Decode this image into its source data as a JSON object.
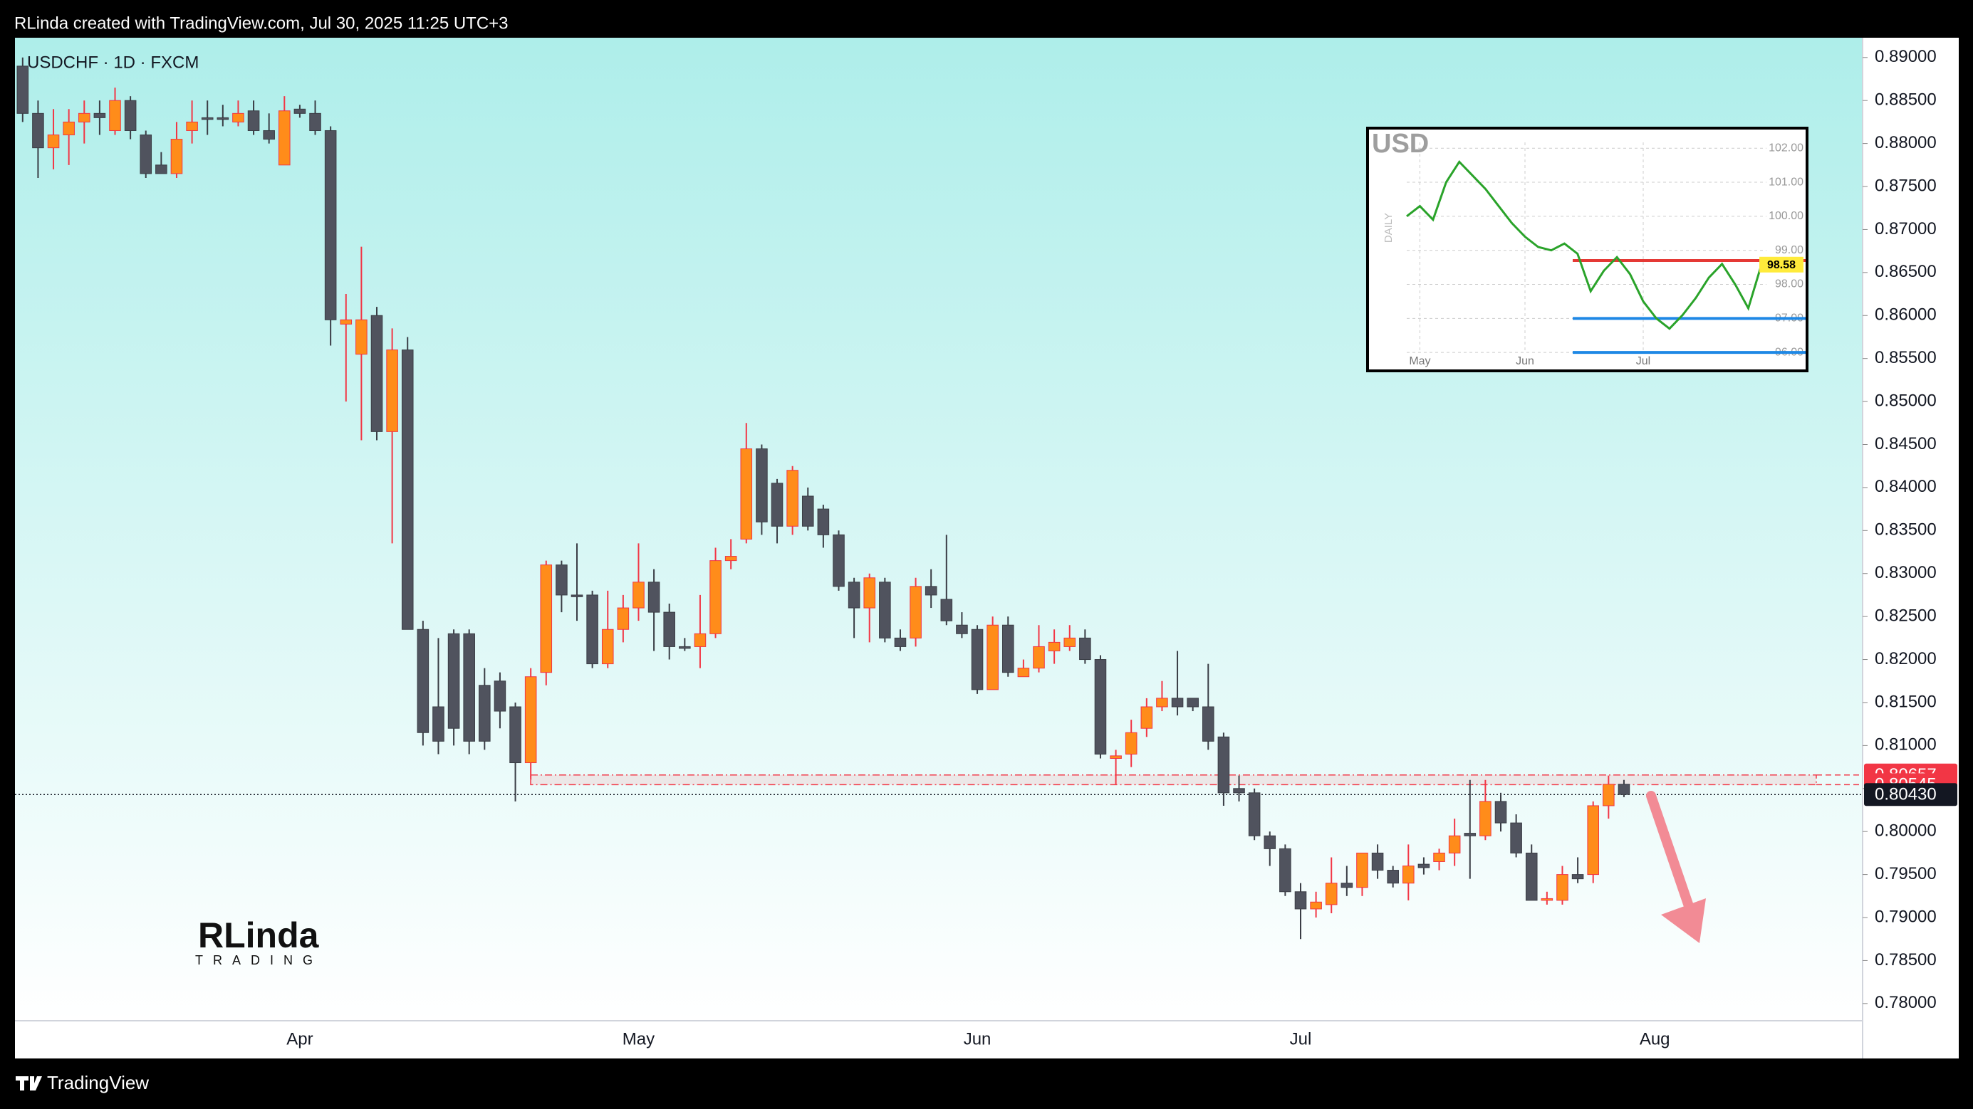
{
  "header": "RLinda created with TradingView.com, Jul 30, 2025 11:25 UTC+3",
  "footer": "TradingView",
  "logo": {
    "name": "RLinda",
    "tagline": "TRADING"
  },
  "chart_data": [
    {
      "type": "candlestick",
      "title": "USDCHF · 1D · FXCM",
      "up_color": "#ff8c1a",
      "down_color": "#50535e",
      "up_wick": "#f23645",
      "down_wick": "#3a3d45",
      "categories": [
        null,
        null,
        null,
        null,
        null,
        null,
        null,
        null,
        null,
        null,
        null,
        null,
        null,
        null,
        null,
        null,
        null,
        null,
        "Apr",
        null,
        null,
        null,
        null,
        null,
        null,
        null,
        null,
        null,
        null,
        null,
        null,
        null,
        null,
        null,
        null,
        null,
        null,
        null,
        null,
        null,
        "May",
        null,
        null,
        null,
        null,
        null,
        null,
        null,
        null,
        null,
        null,
        null,
        null,
        null,
        null,
        null,
        null,
        null,
        null,
        null,
        null,
        null,
        "Jun",
        null,
        null,
        null,
        null,
        null,
        null,
        null,
        null,
        null,
        null,
        null,
        null,
        null,
        null,
        null,
        null,
        null,
        null,
        null,
        null,
        "Jul",
        null,
        null,
        null,
        null,
        null,
        null,
        null,
        null,
        null,
        null,
        null,
        null,
        null,
        null,
        null,
        null,
        null,
        null,
        null,
        null,
        null,
        null,
        "Aug",
        null,
        null,
        null,
        null,
        null,
        null,
        null,
        null,
        null,
        null,
        null,
        null,
        null
      ],
      "open": [
        0.889,
        0.8835,
        0.8795,
        0.881,
        0.8825,
        0.8835,
        0.8815,
        0.885,
        0.881,
        0.8775,
        0.8765,
        0.8815,
        0.883,
        0.883,
        0.8825,
        0.8838,
        0.8815,
        0.8775,
        0.884,
        0.8835,
        0.8815,
        0.859,
        0.8555,
        0.86,
        0.8465,
        0.856,
        0.8235,
        0.8145,
        0.823,
        0.823,
        0.817,
        0.8175,
        0.8145,
        0.808,
        0.8185,
        0.831,
        0.8275,
        0.8275,
        0.8195,
        0.8235,
        0.826,
        0.829,
        0.8255,
        0.8215,
        0.8215,
        0.823,
        0.8315,
        0.834,
        0.8445,
        0.8405,
        0.8355,
        0.839,
        0.8375,
        0.8345,
        0.829,
        0.826,
        0.829,
        0.8225,
        0.8225,
        0.8285,
        0.827,
        0.824,
        0.8235,
        0.8165,
        0.824,
        0.818,
        0.819,
        0.821,
        0.8215,
        0.8225,
        0.82,
        0.8085,
        0.809,
        0.812,
        0.8145,
        0.8155,
        0.8155,
        0.8145,
        0.811,
        0.805,
        0.8045,
        0.7995,
        0.798,
        0.793,
        0.791,
        0.7915,
        0.794,
        0.7935,
        0.7975,
        0.7955,
        0.794,
        0.7962,
        0.7965,
        0.7975,
        0.7998,
        0.7995,
        0.8035,
        0.801,
        0.7975,
        0.792,
        0.792,
        0.795,
        0.795,
        0.803,
        0.8055,
        null,
        null,
        null,
        null,
        null,
        null,
        null,
        null,
        null,
        null,
        null,
        null,
        null,
        null,
        null
      ],
      "high": [
        0.89,
        0.885,
        0.884,
        0.884,
        0.885,
        0.885,
        0.8865,
        0.8855,
        0.8815,
        0.879,
        0.8825,
        0.885,
        0.885,
        0.8845,
        0.885,
        0.885,
        0.8835,
        0.8855,
        0.8845,
        0.885,
        0.882,
        0.8625,
        0.868,
        0.861,
        0.8585,
        0.8575,
        0.8245,
        0.8225,
        0.8235,
        0.8235,
        0.819,
        0.8185,
        0.815,
        0.819,
        0.8315,
        0.8315,
        0.8335,
        0.828,
        0.828,
        0.8275,
        0.8335,
        0.8305,
        0.8265,
        0.8225,
        0.8275,
        0.833,
        0.834,
        0.8475,
        0.845,
        0.841,
        0.8425,
        0.84,
        0.838,
        0.835,
        0.8295,
        0.83,
        0.8295,
        0.8235,
        0.8295,
        0.8305,
        0.8345,
        0.8255,
        0.824,
        0.825,
        0.825,
        0.82,
        0.824,
        0.8235,
        0.824,
        0.8235,
        0.8205,
        0.8095,
        0.813,
        0.8155,
        0.8175,
        0.821,
        0.8155,
        0.8195,
        0.8115,
        0.8065,
        0.805,
        0.8,
        0.7985,
        0.794,
        0.793,
        0.797,
        0.796,
        0.7975,
        0.7985,
        0.796,
        0.7985,
        0.797,
        0.798,
        0.8015,
        0.806,
        0.806,
        0.8045,
        0.802,
        0.7985,
        0.793,
        0.796,
        0.797,
        0.8035,
        0.8065,
        0.806,
        null,
        null,
        null,
        null,
        null,
        null,
        null,
        null,
        null,
        null,
        null,
        null,
        null,
        null,
        null
      ],
      "low": [
        0.8825,
        0.876,
        0.877,
        0.8775,
        0.88,
        0.881,
        0.881,
        0.8805,
        0.876,
        0.8765,
        0.876,
        0.88,
        0.881,
        0.882,
        0.882,
        0.881,
        0.88,
        0.8775,
        0.883,
        0.881,
        0.8565,
        0.85,
        0.8455,
        0.8455,
        0.8335,
        0.8235,
        0.81,
        0.809,
        0.81,
        0.809,
        0.8095,
        0.812,
        0.8035,
        0.806,
        0.817,
        0.8255,
        0.8245,
        0.819,
        0.819,
        0.822,
        0.8245,
        0.821,
        0.82,
        0.821,
        0.819,
        0.8225,
        0.8305,
        0.8335,
        0.8345,
        0.8335,
        0.8345,
        0.835,
        0.833,
        0.828,
        0.8225,
        0.822,
        0.822,
        0.821,
        0.8215,
        0.826,
        0.824,
        0.8225,
        0.816,
        0.8165,
        0.818,
        0.818,
        0.8185,
        0.8195,
        0.821,
        0.8195,
        0.8085,
        0.8055,
        0.8075,
        0.811,
        0.814,
        0.8135,
        0.814,
        0.8095,
        0.803,
        0.8035,
        0.799,
        0.796,
        0.7925,
        0.7875,
        0.79,
        0.7905,
        0.7925,
        0.7925,
        0.7945,
        0.7935,
        0.792,
        0.795,
        0.7955,
        0.796,
        0.7945,
        0.799,
        0.8,
        0.797,
        0.792,
        0.7915,
        0.7915,
        0.794,
        0.794,
        0.8015,
        0.804,
        null,
        null,
        null,
        null,
        null,
        null,
        null,
        null,
        null,
        null,
        null,
        null,
        null,
        null,
        null
      ],
      "close": [
        0.8835,
        0.8795,
        0.881,
        0.8825,
        0.8835,
        0.883,
        0.885,
        0.8815,
        0.8765,
        0.8765,
        0.8805,
        0.8825,
        0.8828,
        0.8828,
        0.8835,
        0.8815,
        0.8805,
        0.8838,
        0.8835,
        0.8815,
        0.8595,
        0.8595,
        0.8595,
        0.8465,
        0.856,
        0.8235,
        0.8115,
        0.8105,
        0.812,
        0.8105,
        0.8105,
        0.814,
        0.808,
        0.818,
        0.831,
        0.8275,
        0.8273,
        0.8195,
        0.8235,
        0.826,
        0.829,
        0.8255,
        0.8215,
        0.8213,
        0.823,
        0.8315,
        0.832,
        0.8445,
        0.836,
        0.8355,
        0.842,
        0.8355,
        0.8345,
        0.8285,
        0.826,
        0.8295,
        0.8225,
        0.8215,
        0.8285,
        0.8275,
        0.8245,
        0.823,
        0.8165,
        0.824,
        0.8185,
        0.819,
        0.8215,
        0.822,
        0.8225,
        0.82,
        0.809,
        0.8088,
        0.8115,
        0.8145,
        0.8155,
        0.8145,
        0.8145,
        0.8105,
        0.8045,
        0.8045,
        0.7995,
        0.798,
        0.793,
        0.791,
        0.7918,
        0.794,
        0.7935,
        0.7975,
        0.7955,
        0.794,
        0.796,
        0.7958,
        0.7975,
        0.7995,
        0.7995,
        0.8035,
        0.801,
        0.7975,
        0.792,
        0.7922,
        0.795,
        0.7945,
        0.803,
        0.8055,
        0.8043,
        null,
        null,
        null,
        null,
        null,
        null,
        null,
        null,
        null,
        null,
        null,
        null,
        null,
        null,
        null
      ],
      "ylim": [
        0.778,
        0.8923
      ],
      "yticks": [
        {
          "value": 0.78,
          "label": "0.78000"
        },
        {
          "value": 0.785,
          "label": "0.78500"
        },
        {
          "value": 0.79,
          "label": "0.79000"
        },
        {
          "value": 0.795,
          "label": "0.79500"
        },
        {
          "value": 0.8,
          "label": "0.80000"
        },
        {
          "value": 0.805,
          "label": "0.80500"
        },
        {
          "value": 0.81,
          "label": "0.81000"
        },
        {
          "value": 0.815,
          "label": "0.81500"
        },
        {
          "value": 0.82,
          "label": "0.82000"
        },
        {
          "value": 0.825,
          "label": "0.82500"
        },
        {
          "value": 0.83,
          "label": "0.83000"
        },
        {
          "value": 0.835,
          "label": "0.83500"
        },
        {
          "value": 0.84,
          "label": "0.84000"
        },
        {
          "value": 0.845,
          "label": "0.84500"
        },
        {
          "value": 0.85,
          "label": "0.85000"
        },
        {
          "value": 0.855,
          "label": "0.85500"
        },
        {
          "value": 0.86,
          "label": "0.86000"
        },
        {
          "value": 0.865,
          "label": "0.86500"
        },
        {
          "value": 0.87,
          "label": "0.87000"
        },
        {
          "value": 0.875,
          "label": "0.87500"
        },
        {
          "value": 0.88,
          "label": "0.88000"
        },
        {
          "value": 0.885,
          "label": "0.88500"
        },
        {
          "value": 0.89,
          "label": "0.89000"
        }
      ],
      "markers": [
        {
          "value": 0.80657,
          "color": "#f23645"
        },
        {
          "value": 0.80545,
          "color": "#f23645"
        },
        {
          "value": 0.8043,
          "label": "0.80430",
          "color": "#131722"
        }
      ]
    },
    {
      "type": "line",
      "title": "USD",
      "y_label": "DAILY",
      "color": "#2aa32a",
      "categories": [
        null,
        "May",
        null,
        null,
        null,
        null,
        null,
        null,
        null,
        "Jun",
        null,
        null,
        null,
        null,
        null,
        null,
        null,
        null,
        "Jul",
        null,
        null,
        null,
        null,
        null,
        null,
        null,
        null,
        null
      ],
      "values": [
        100.0,
        100.3,
        99.9,
        101.0,
        101.6,
        101.2,
        100.8,
        100.3,
        99.8,
        99.4,
        99.1,
        99.0,
        99.2,
        98.9,
        97.8,
        98.4,
        98.8,
        98.3,
        97.5,
        97.0,
        96.7,
        97.1,
        97.6,
        98.2,
        98.6,
        98.0,
        97.3,
        98.58
      ],
      "ylim": [
        95.46,
        102.59
      ],
      "yticks": [
        {
          "value": 96,
          "label": "96.00"
        },
        {
          "value": 97,
          "label": "97.00"
        },
        {
          "value": 98,
          "label": "98.00"
        },
        {
          "value": 99,
          "label": "99.00"
        },
        {
          "value": 100,
          "label": "100.00"
        },
        {
          "value": 101,
          "label": "101.00"
        },
        {
          "value": 102,
          "label": "102.00"
        }
      ],
      "levels": [
        {
          "value": 98.7,
          "color": "#e53935"
        },
        {
          "value": 97.0,
          "color": "#1e88e5"
        },
        {
          "value": 96.0,
          "color": "#1e88e5"
        }
      ],
      "last": 98.58
    }
  ]
}
